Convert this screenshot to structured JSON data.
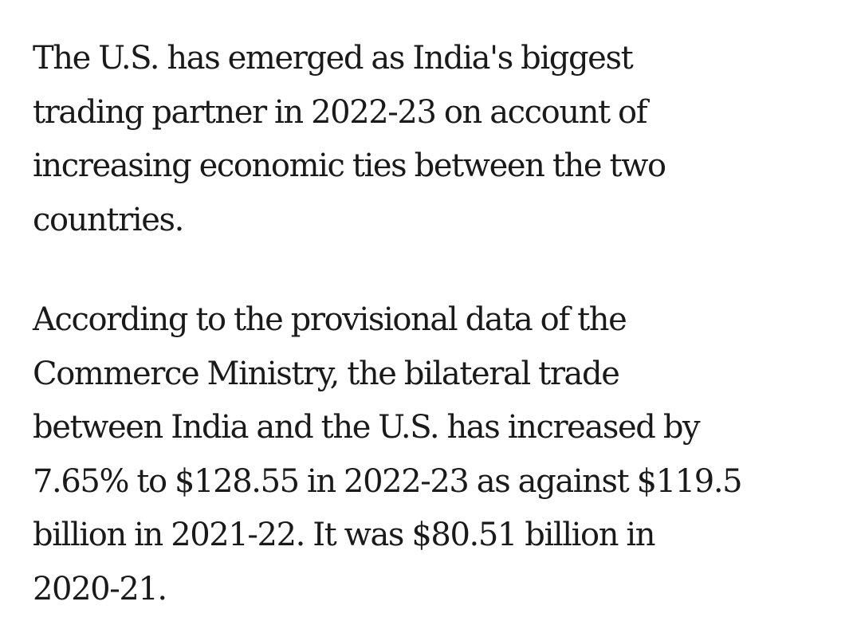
{
  "paragraphs": [
    {
      "lines": [
        "The U.S. has emerged as India's biggest",
        "trading partner in 2022-23 on account of",
        "increasing economic ties between the two",
        "countries."
      ]
    },
    {
      "lines": [
        "According to the provisional data of the",
        "Commerce Ministry, the bilateral trade",
        "between India and the U.S. has increased by",
        "7.65% to $128.55 in 2022-23 as against $119.5",
        "billion in 2021-22. It was $80.51 billion in",
        "2020-21."
      ]
    }
  ]
}
